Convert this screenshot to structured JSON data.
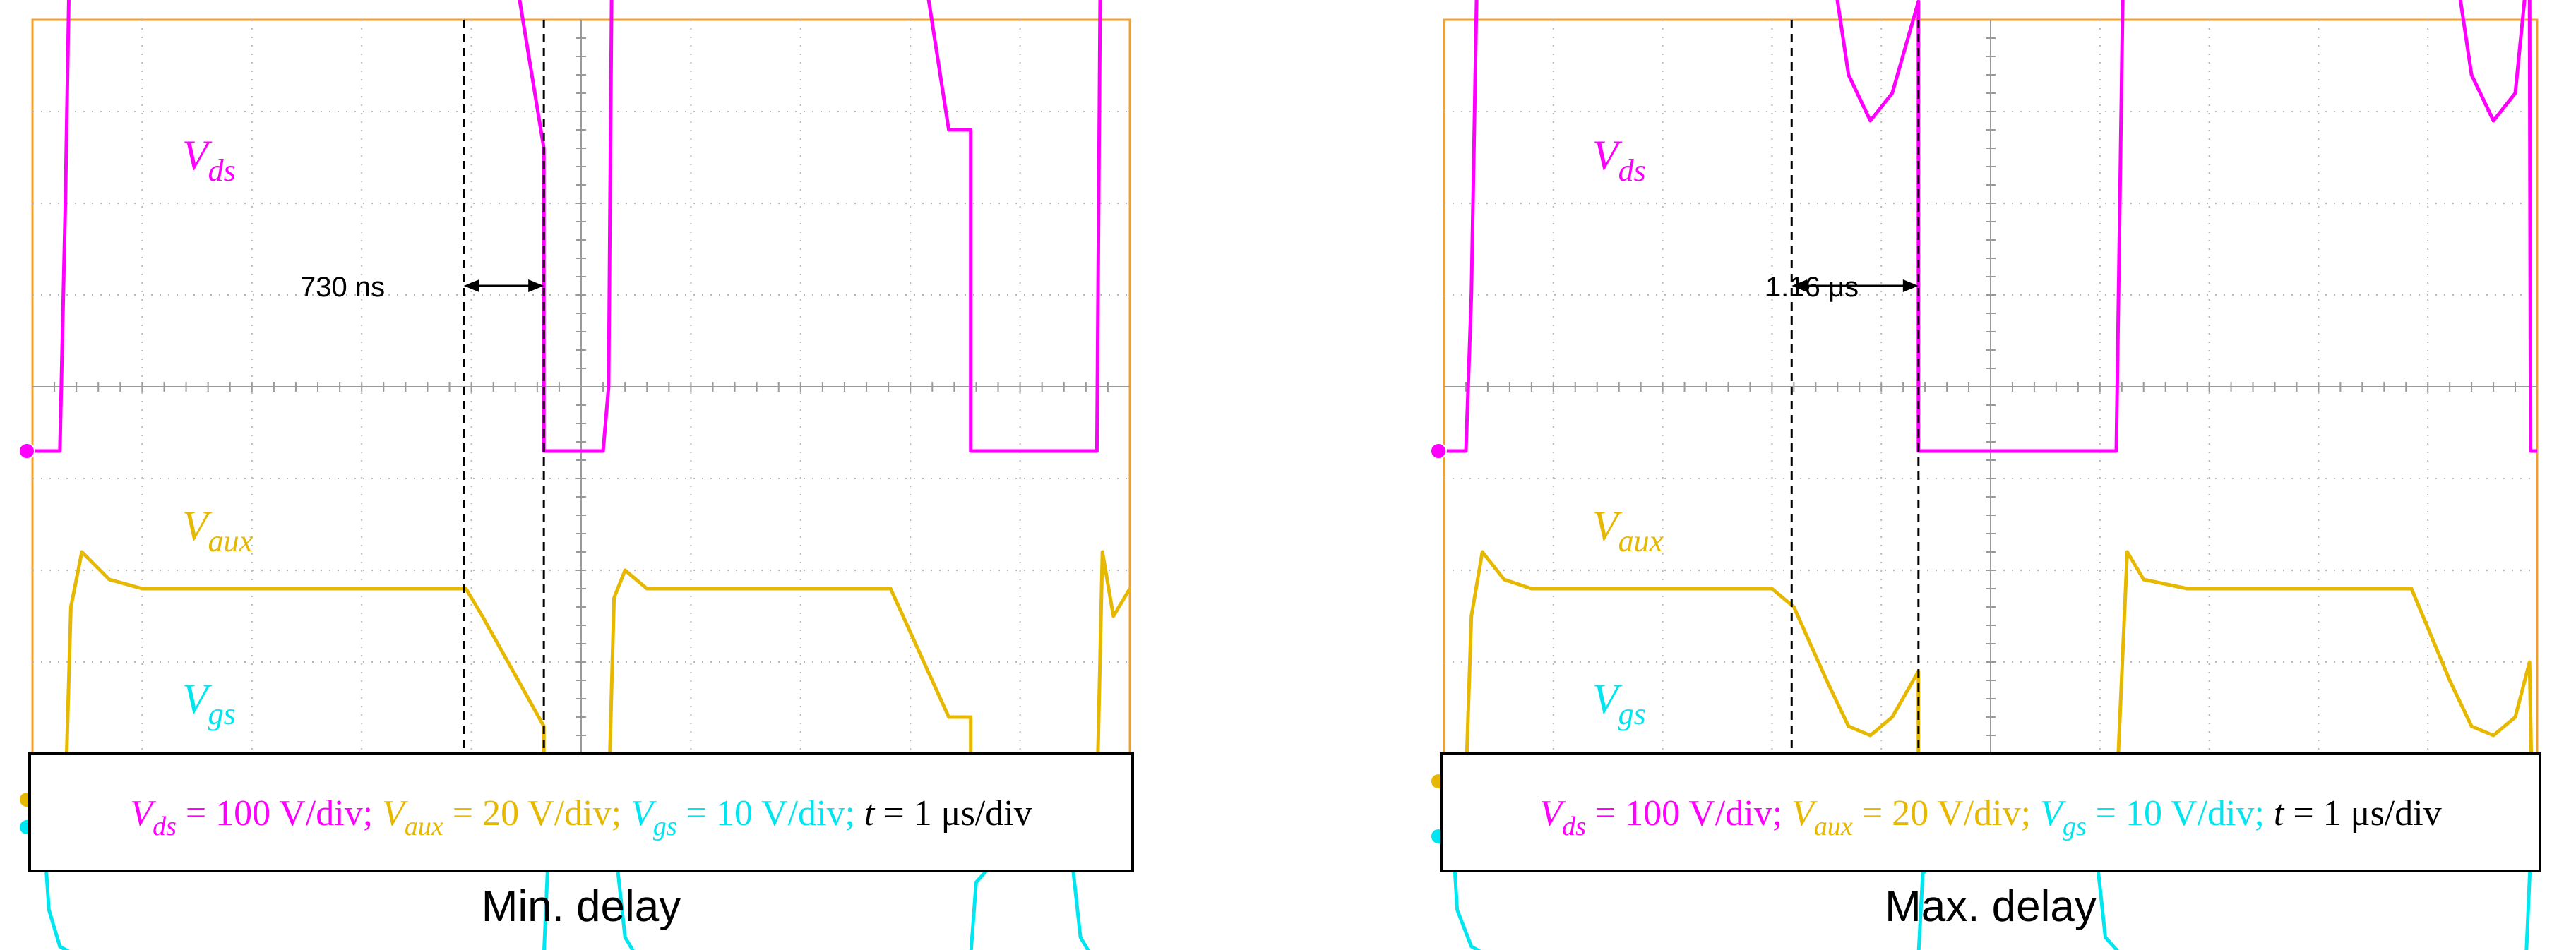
{
  "chart_data": [
    {
      "type": "line",
      "panel_caption": "Min. delay",
      "settings": [
        {
          "sym": "V",
          "sub": "ds",
          "eq": " = 100 V/div; ",
          "color": "#ff00ff"
        },
        {
          "sym": "V",
          "sub": "aux",
          "eq": " = 20 V/div; ",
          "color": "#e6b800"
        },
        {
          "sym": "V",
          "sub": "gs",
          "eq": " = 10 V/div; ",
          "color": "#00e6f0"
        },
        {
          "sym": "t",
          "sub": "",
          "eq": " = 1 μs/div",
          "color": "#000000"
        }
      ],
      "x_grid_divisions": 10,
      "y_grid_divisions": 8,
      "delay_annotation": {
        "label": "730 ns",
        "from_div": 3.93,
        "to_div": 4.66
      },
      "series": [
        {
          "name": "Vds",
          "sym": "V",
          "sub": "ds",
          "color": "#ff00ff",
          "x_div": [
            0,
            0.25,
            0.3,
            0.38,
            0.48,
            0.7,
            1.0,
            2.0,
            3.0,
            3.95,
            4.1,
            4.66,
            4.66,
            5.0,
            5.2,
            5.25,
            5.3,
            5.4,
            5.6,
            6.0,
            7.0,
            7.82,
            8.35,
            8.55,
            8.55,
            9.0,
            9.7,
            9.75,
            9.85,
            10.0
          ],
          "y_div": [
            -0.7,
            -0.7,
            2.0,
            7.7,
            7.2,
            7.0,
            6.9,
            6.9,
            6.9,
            6.9,
            6.7,
            2.6,
            -0.7,
            -0.7,
            -0.7,
            0.0,
            7.7,
            7.2,
            7.0,
            6.9,
            6.9,
            6.9,
            2.8,
            2.8,
            -0.7,
            -0.7,
            -0.7,
            7.7,
            6.8,
            7.4
          ]
        },
        {
          "name": "Vaux",
          "sym": "V",
          "sub": "aux",
          "color": "#e6b800",
          "x_div": [
            0,
            0.3,
            0.35,
            0.45,
            0.7,
            1.0,
            2.0,
            3.0,
            3.95,
            4.1,
            4.66,
            4.66,
            4.8,
            5.0,
            5.25,
            5.3,
            5.4,
            5.6,
            6.0,
            7.0,
            7.82,
            8.35,
            8.55,
            8.55,
            8.8,
            9.0,
            9.7,
            9.75,
            9.85,
            10.0
          ],
          "y_div": [
            -4.5,
            -4.5,
            -2.4,
            -1.8,
            -2.1,
            -2.2,
            -2.2,
            -2.2,
            -2.2,
            -2.5,
            -3.7,
            -4.2,
            -4.2,
            -4.5,
            -4.5,
            -2.3,
            -2.0,
            -2.2,
            -2.2,
            -2.2,
            -2.2,
            -3.6,
            -3.6,
            -4.0,
            -4.5,
            -4.5,
            -4.5,
            -1.8,
            -2.5,
            -2.2
          ]
        },
        {
          "name": "Vgs",
          "sym": "V",
          "sub": "gs",
          "color": "#00e6f0",
          "x_div": [
            0,
            0.1,
            0.15,
            0.25,
            0.4,
            1.0,
            2.0,
            3.0,
            4.0,
            4.66,
            4.7,
            5.0,
            5.3,
            5.4,
            5.5,
            5.6,
            6.0,
            7.0,
            8.3,
            8.55,
            8.6,
            8.9,
            9.2,
            9.45,
            9.55,
            9.65,
            10.0
          ],
          "y_div": [
            -4.8,
            -4.8,
            -5.7,
            -6.1,
            -6.2,
            -6.2,
            -6.2,
            -6.2,
            -6.2,
            -6.2,
            -5.1,
            -4.9,
            -4.9,
            -6.0,
            -6.2,
            -6.2,
            -6.2,
            -6.2,
            -6.2,
            -6.2,
            -5.4,
            -5.0,
            -4.9,
            -4.9,
            -6.0,
            -6.2,
            -6.2
          ]
        }
      ]
    },
    {
      "type": "line",
      "panel_caption": "Max. delay",
      "settings": [
        {
          "sym": "V",
          "sub": "ds",
          "eq": " = 100 V/div; ",
          "color": "#ff00ff"
        },
        {
          "sym": "V",
          "sub": "aux",
          "eq": " = 20 V/div; ",
          "color": "#e6b800"
        },
        {
          "sym": "V",
          "sub": "gs",
          "eq": " = 10 V/div; ",
          "color": "#00e6f0"
        },
        {
          "sym": "t",
          "sub": "",
          "eq": " = 1 μs/div",
          "color": "#000000"
        }
      ],
      "x_grid_divisions": 10,
      "y_grid_divisions": 8,
      "delay_annotation": {
        "label": "1.16 μs",
        "from_div": 3.18,
        "to_div": 4.34
      },
      "series": [
        {
          "name": "Vds",
          "sym": "V",
          "sub": "ds",
          "color": "#ff00ff",
          "x_div": [
            0,
            0.2,
            0.25,
            0.35,
            0.55,
            0.8,
            1.0,
            2.0,
            3.0,
            3.2,
            3.5,
            3.7,
            3.9,
            4.1,
            4.34,
            4.34,
            5.0,
            6.0,
            6.15,
            6.25,
            6.4,
            6.8,
            7.0,
            8.0,
            8.85,
            9.2,
            9.4,
            9.6,
            9.8,
            9.9,
            9.93,
            9.94,
            10.0
          ],
          "y_div": [
            -0.7,
            -0.7,
            1.0,
            7.8,
            7.1,
            6.9,
            6.9,
            6.9,
            6.9,
            6.8,
            5.0,
            3.4,
            2.9,
            3.2,
            4.2,
            -0.7,
            -0.7,
            -0.7,
            -0.7,
            7.6,
            7.1,
            6.9,
            6.9,
            6.9,
            6.9,
            5.0,
            3.4,
            2.9,
            3.2,
            4.4,
            4.4,
            -0.7,
            -0.7
          ]
        },
        {
          "name": "Vaux",
          "sym": "V",
          "sub": "aux",
          "color": "#e6b800",
          "x_div": [
            0,
            0.2,
            0.25,
            0.35,
            0.55,
            0.8,
            1.0,
            2.0,
            3.0,
            3.2,
            3.5,
            3.7,
            3.9,
            4.1,
            4.34,
            4.34,
            4.5,
            5.0,
            5.5,
            6.0,
            6.15,
            6.25,
            6.4,
            6.8,
            7.0,
            8.0,
            8.85,
            9.2,
            9.4,
            9.6,
            9.8,
            9.93,
            9.95,
            10.0
          ],
          "y_div": [
            -4.3,
            -4.3,
            -2.5,
            -1.8,
            -2.1,
            -2.2,
            -2.2,
            -2.2,
            -2.2,
            -2.4,
            -3.2,
            -3.7,
            -3.8,
            -3.6,
            -3.1,
            -4.5,
            -4.5,
            -4.5,
            -4.5,
            -4.5,
            -4.5,
            -1.8,
            -2.1,
            -2.2,
            -2.2,
            -2.2,
            -2.2,
            -3.2,
            -3.7,
            -3.8,
            -3.6,
            -3.0,
            -4.3,
            -4.5
          ]
        },
        {
          "name": "Vgs",
          "sym": "V",
          "sub": "gs",
          "color": "#00e6f0",
          "x_div": [
            0,
            0.08,
            0.12,
            0.25,
            0.4,
            1.0,
            2.0,
            3.0,
            4.0,
            4.34,
            4.38,
            4.7,
            5.0,
            5.5,
            5.95,
            6.05,
            6.2,
            7.0,
            8.0,
            9.0,
            9.9,
            9.94,
            10.0
          ],
          "y_div": [
            -4.9,
            -4.9,
            -5.7,
            -6.1,
            -6.2,
            -6.2,
            -6.2,
            -6.2,
            -6.2,
            -6.2,
            -5.3,
            -5.0,
            -4.9,
            -4.9,
            -4.9,
            -6.0,
            -6.2,
            -6.2,
            -6.2,
            -6.2,
            -6.2,
            -5.1,
            -4.8
          ]
        }
      ]
    }
  ]
}
